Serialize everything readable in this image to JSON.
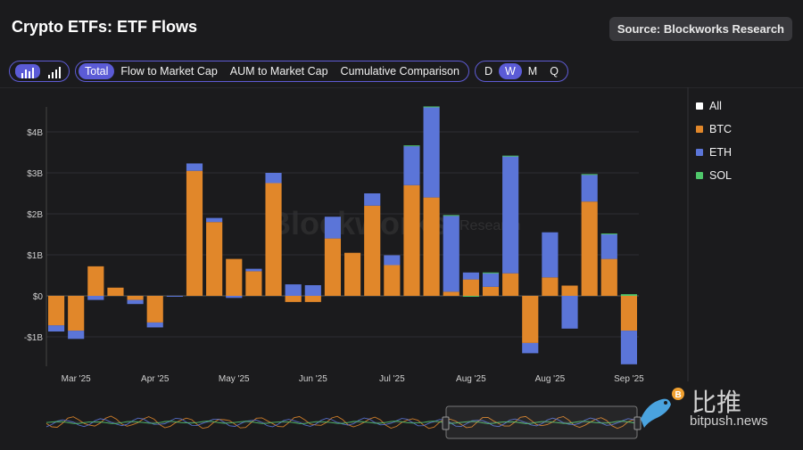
{
  "header": {
    "title": "Crypto ETFs: ETF Flows",
    "source": "Source: Blockworks Research"
  },
  "toolbar": {
    "views": [
      "Total",
      "Flow to Market Cap",
      "AUM to Market Cap",
      "Cumulative Comparison"
    ],
    "active_view": "Total",
    "periods": [
      "D",
      "W",
      "M",
      "Q"
    ],
    "active_period": "W"
  },
  "legend": [
    {
      "label": "All",
      "color": "#ffffff"
    },
    {
      "label": "BTC",
      "color": "#e1872a"
    },
    {
      "label": "ETH",
      "color": "#5b75d8"
    },
    {
      "label": "SOL",
      "color": "#4fc76a"
    }
  ],
  "watermark": {
    "brand": "Blockworks",
    "sub": "Research"
  },
  "branding": {
    "cn": "比推",
    "url": "bitpush.news"
  },
  "chart_data": {
    "type": "bar",
    "stacked": true,
    "ylim": [
      -1.7,
      4.55
    ],
    "yticks": [
      -1,
      0,
      1,
      2,
      3,
      4
    ],
    "ytick_labels": [
      "-$1B",
      "$0",
      "$1B",
      "$2B",
      "$3B",
      "$4B"
    ],
    "xtick_labels": [
      "Mar '25",
      "Apr '25",
      "May '25",
      "Jun '25",
      "Jul '25",
      "Aug '25",
      "Aug '25",
      "Sep '25"
    ],
    "xtick_positions": [
      1.5,
      5.5,
      9.5,
      13.5,
      17.5,
      21.5,
      25.5,
      29.5
    ],
    "grid": true,
    "legend_position": "right",
    "series": [
      {
        "name": "BTC",
        "color": "#e1872a",
        "values": [
          -0.72,
          -0.85,
          0.72,
          0.2,
          -0.1,
          -0.65,
          0.0,
          3.05,
          1.8,
          0.9,
          0.6,
          2.75,
          -0.15,
          -0.15,
          1.4,
          1.05,
          2.2,
          0.75,
          2.7,
          2.4,
          0.1,
          0.4,
          0.22,
          0.55,
          -1.15,
          0.45,
          0.25,
          2.3,
          0.9,
          -0.85
        ]
      },
      {
        "name": "ETH",
        "color": "#5b75d8",
        "values": [
          -0.15,
          -0.2,
          -0.1,
          0.0,
          -0.1,
          -0.12,
          -0.02,
          0.18,
          0.1,
          -0.05,
          0.06,
          0.25,
          0.28,
          0.26,
          0.53,
          0.0,
          0.3,
          0.24,
          0.95,
          2.2,
          1.85,
          0.17,
          0.33,
          2.85,
          -0.25,
          1.1,
          -0.8,
          0.65,
          0.6,
          -0.82
        ]
      },
      {
        "name": "SOL",
        "color": "#4fc76a",
        "values": [
          0.0,
          0.0,
          0.0,
          0.0,
          0.0,
          0.0,
          0.0,
          0.0,
          0.0,
          0.0,
          0.0,
          0.0,
          0.0,
          0.0,
          0.0,
          0.0,
          0.0,
          0.0,
          0.02,
          0.02,
          0.02,
          -0.02,
          0.02,
          0.02,
          0.0,
          0.0,
          0.0,
          0.02,
          0.02,
          0.04
        ]
      }
    ]
  }
}
